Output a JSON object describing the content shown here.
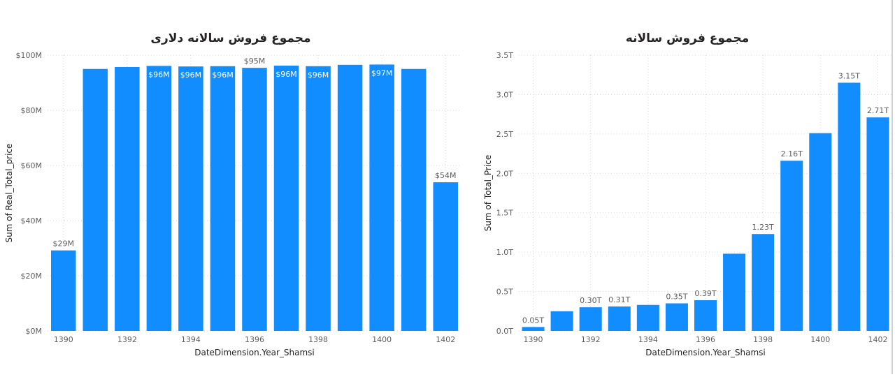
{
  "chart_data": [
    {
      "type": "bar",
      "title": "مجموع فروش سالانه دلاری",
      "xlabel": "DateDimension.Year_Shamsi",
      "ylabel": "Sum of Real_Total_price",
      "categories": [
        "1390",
        "1391",
        "1392",
        "1393",
        "1394",
        "1395",
        "1396",
        "1397",
        "1398",
        "1399",
        "1400",
        "1401",
        "1402"
      ],
      "x_tick_labels": [
        "1390",
        "1392",
        "1394",
        "1396",
        "1398",
        "1400",
        "1402"
      ],
      "values": [
        29.2,
        95.0,
        95.7,
        96.1,
        95.9,
        96.0,
        95.4,
        96.2,
        96.0,
        96.5,
        96.6,
        95.0,
        53.9
      ],
      "data_labels": [
        "$29M",
        "",
        "",
        "$96M",
        "$96M",
        "$96M",
        "$95M",
        "$96M",
        "$96M",
        "",
        "$97M",
        "",
        "$54M"
      ],
      "data_label_inside": [
        false,
        false,
        false,
        true,
        true,
        true,
        false,
        true,
        true,
        false,
        true,
        false,
        false
      ],
      "y_ticks": [
        0,
        20,
        40,
        60,
        80,
        100
      ],
      "y_tick_labels": [
        "$0M",
        "$20M",
        "$40M",
        "$60M",
        "$80M",
        "$100M"
      ],
      "ylim": [
        0,
        100
      ],
      "grid": true,
      "bar_color": "#118dff"
    },
    {
      "type": "bar",
      "title": "مجموع فروش سالانه",
      "xlabel": "DateDimension.Year_Shamsi",
      "ylabel": "Sum of Total_Price",
      "categories": [
        "1390",
        "1391",
        "1392",
        "1393",
        "1394",
        "1395",
        "1396",
        "1397",
        "1398",
        "1399",
        "1400",
        "1401",
        "1402"
      ],
      "x_tick_labels": [
        "1390",
        "1392",
        "1394",
        "1396",
        "1398",
        "1400",
        "1402"
      ],
      "values": [
        0.05,
        0.25,
        0.3,
        0.31,
        0.33,
        0.35,
        0.39,
        0.98,
        1.23,
        2.16,
        2.51,
        3.15,
        2.71
      ],
      "data_labels": [
        "0.05T",
        "",
        "0.30T",
        "0.31T",
        "",
        "0.35T",
        "0.39T",
        "",
        "1.23T",
        "2.16T",
        "",
        "3.15T",
        "2.71T"
      ],
      "data_label_inside": [
        false,
        false,
        false,
        false,
        false,
        false,
        false,
        false,
        false,
        false,
        false,
        false,
        false
      ],
      "y_ticks": [
        0,
        0.5,
        1.0,
        1.5,
        2.0,
        2.5,
        3.0,
        3.5
      ],
      "y_tick_labels": [
        "0.0T",
        "0.5T",
        "1.0T",
        "1.5T",
        "2.0T",
        "2.5T",
        "3.0T",
        "3.5T"
      ],
      "ylim": [
        0,
        3.5
      ],
      "grid": true,
      "bar_color": "#118dff"
    }
  ]
}
